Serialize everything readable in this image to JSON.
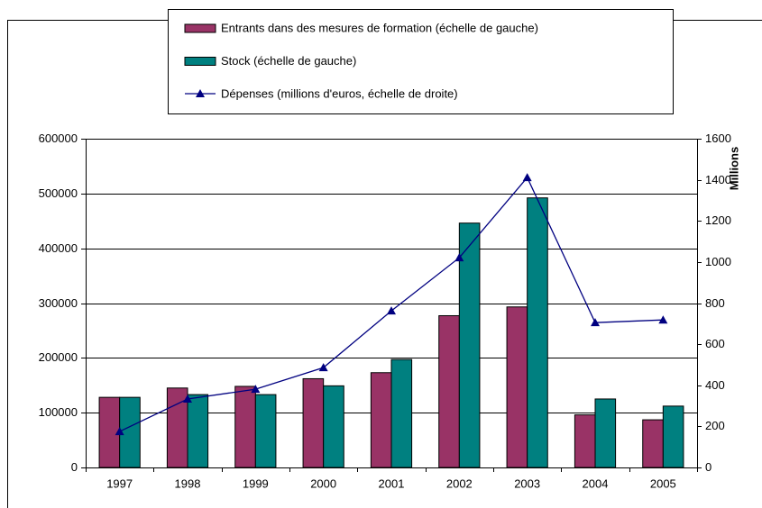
{
  "chart_data": {
    "type": "bar",
    "categories": [
      "1997",
      "1998",
      "1999",
      "2000",
      "2001",
      "2002",
      "2003",
      "2004",
      "2005"
    ],
    "series": [
      {
        "name": "Entrants dans des mesures de formation (échelle de gauche)",
        "type": "bar",
        "color": "#993366",
        "values": [
          128000,
          145000,
          148000,
          162000,
          173000,
          277000,
          293000,
          96000,
          87000
        ]
      },
      {
        "name": "Stock (échelle de gauche)",
        "type": "bar",
        "color": "#008080",
        "values": [
          128000,
          133000,
          133000,
          149000,
          197000,
          446000,
          492000,
          125000,
          112000
        ]
      },
      {
        "name": "Dépenses (millions d'euros, échelle de droite)",
        "type": "line",
        "axis": "y2",
        "color": "#000080",
        "values": [
          175,
          333,
          381,
          486,
          762,
          1021,
          1411,
          705,
          718
        ]
      }
    ],
    "ylim": [
      0,
      600000
    ],
    "yticks": [
      0,
      100000,
      200000,
      300000,
      400000,
      500000,
      600000
    ],
    "y2lim": [
      0,
      1600
    ],
    "y2ticks": [
      0,
      200,
      400,
      600,
      800,
      1000,
      1200,
      1400,
      1600
    ],
    "y2label": "Millions",
    "grid": true
  }
}
